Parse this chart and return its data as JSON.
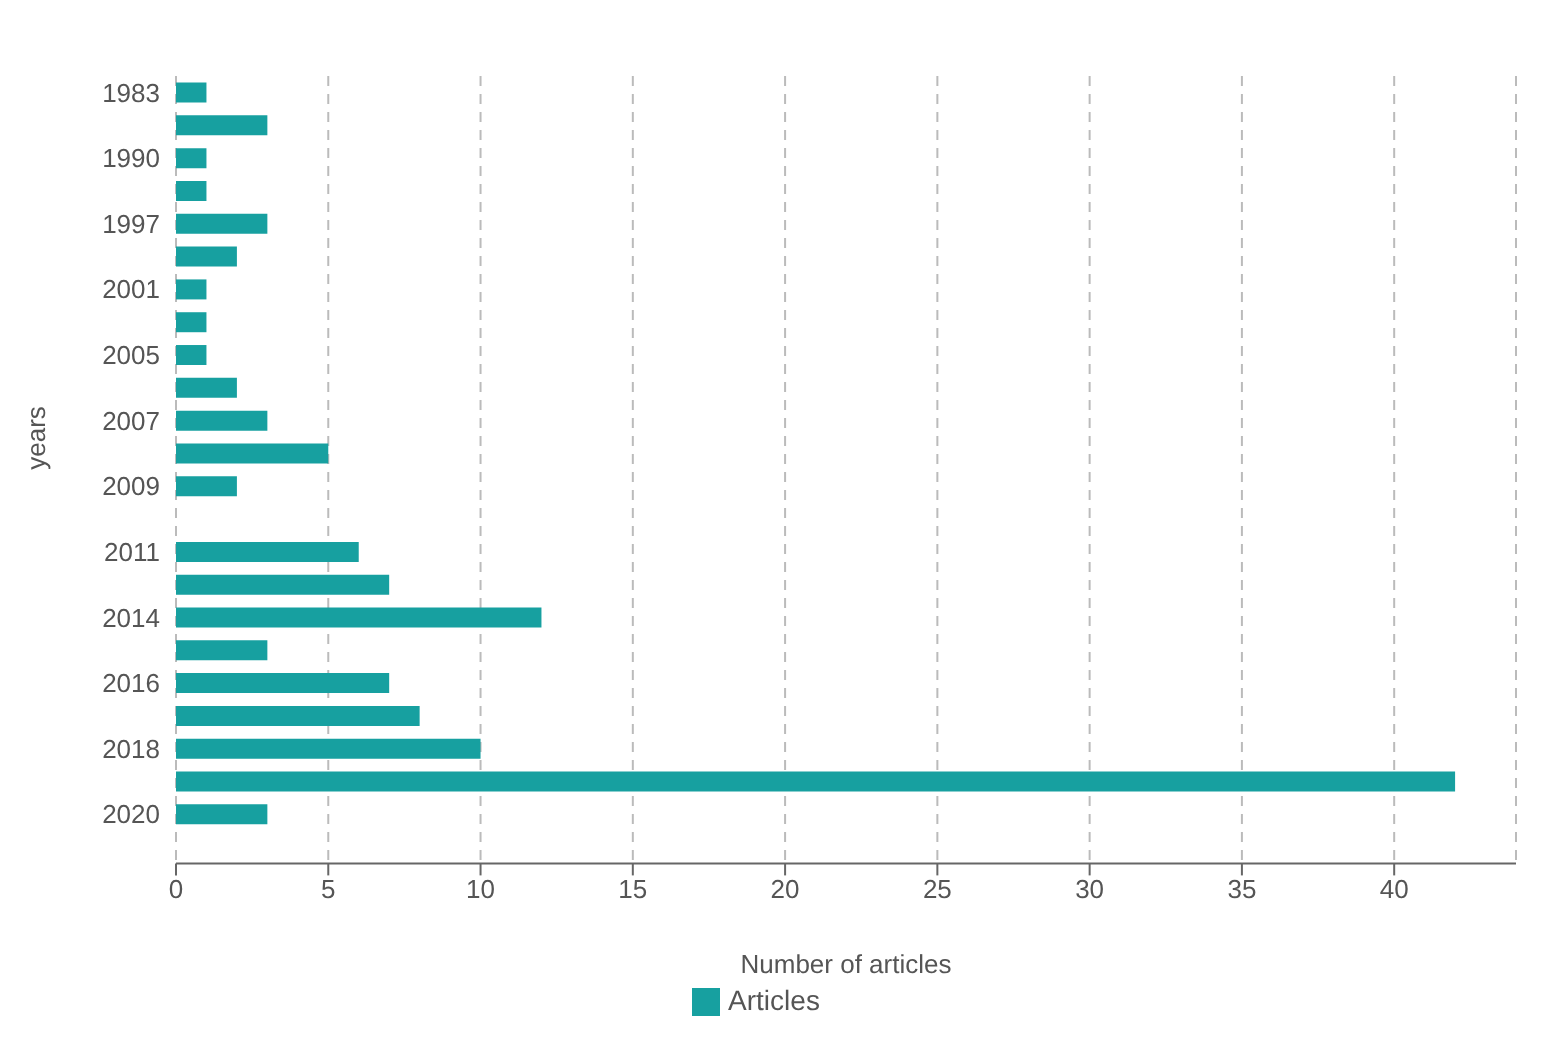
{
  "chart_data": {
    "type": "bar",
    "orientation": "horizontal",
    "xlabel": "Number of articles",
    "ylabel": "years",
    "categories": [
      "1983",
      null,
      "1990",
      null,
      "1997",
      null,
      "2001",
      null,
      "2005",
      null,
      "2007",
      null,
      "2009",
      null,
      "2011",
      null,
      "2014",
      null,
      "2016",
      null,
      "2018",
      null,
      "2020",
      null
    ],
    "series": [
      {
        "name": "Articles",
        "color": "#17a0a0",
        "values": [
          1,
          3,
          1,
          1,
          3,
          2,
          1,
          1,
          1,
          2,
          3,
          5,
          2,
          null,
          6,
          7,
          12,
          3,
          7,
          8,
          10,
          42,
          3,
          null
        ]
      }
    ],
    "xlim": [
      0,
      44
    ],
    "xticks": [
      0,
      5,
      10,
      15,
      20,
      25,
      30,
      35,
      40
    ],
    "grid": "x",
    "legend": "bottom"
  }
}
